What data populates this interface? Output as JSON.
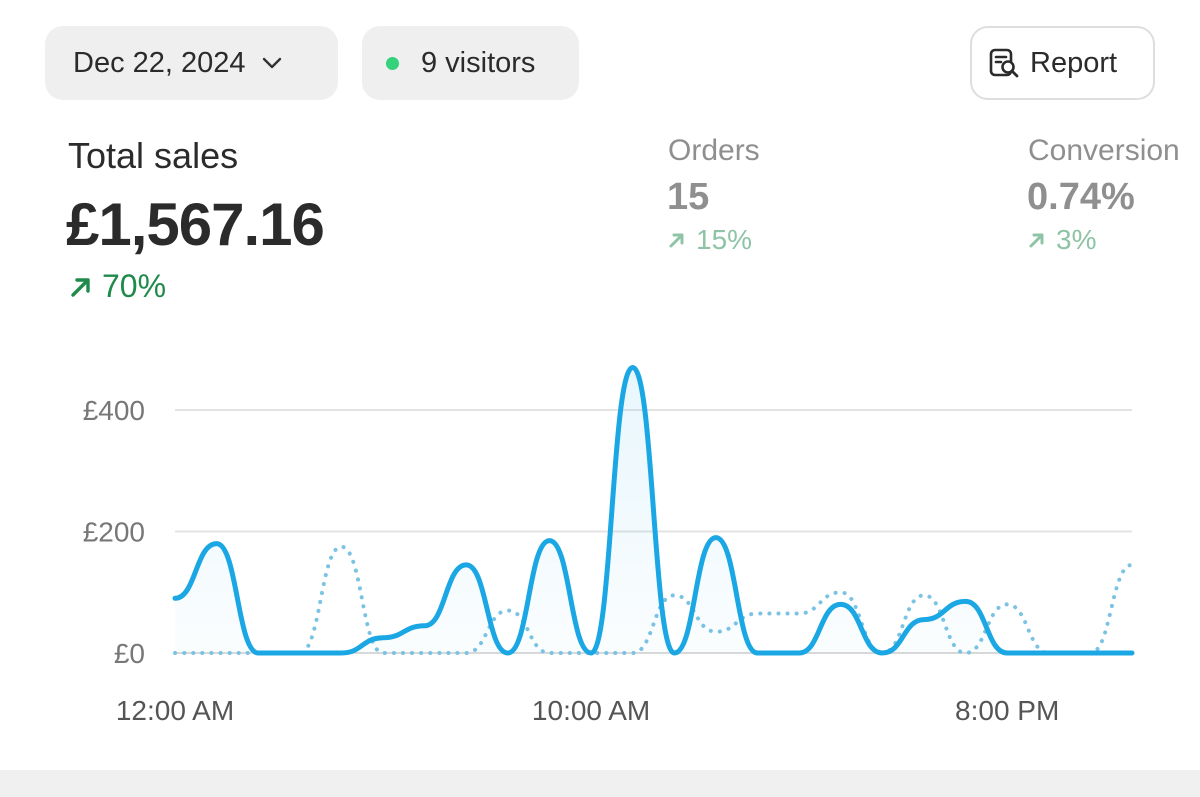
{
  "header": {
    "date": "Dec 22, 2024",
    "visitors": "9 visitors",
    "report_label": "Report",
    "visitor_dot_color": "#34d27b"
  },
  "total_sales": {
    "label": "Total sales",
    "value": "£1,567.16",
    "change": "70%",
    "change_color": "#1f8a4c"
  },
  "orders": {
    "label": "Orders",
    "value": "15",
    "change": "15%"
  },
  "conversion": {
    "label": "Conversion",
    "value": "0.74%",
    "change": "3%"
  },
  "chart_data": {
    "type": "line",
    "title": "",
    "xlabel": "",
    "ylabel": "",
    "ylim": [
      0,
      500
    ],
    "y_ticks": [
      {
        "label": "£0",
        "value": 0
      },
      {
        "label": "£200",
        "value": 200
      },
      {
        "label": "£400",
        "value": 400
      }
    ],
    "x_ticks": [
      {
        "label": "12:00 AM",
        "hour": 0
      },
      {
        "label": "10:00 AM",
        "hour": 10
      },
      {
        "label": "8:00 PM",
        "hour": 20
      }
    ],
    "grid": true,
    "series": [
      {
        "style": "solid",
        "color": "#1aa7e4",
        "hours": [
          0,
          1,
          2,
          3,
          4,
          5,
          6,
          7,
          8,
          9,
          10,
          11,
          12,
          13,
          14,
          15,
          16,
          17,
          18,
          19,
          20,
          21,
          22,
          23
        ],
        "values": [
          90,
          180,
          0,
          0,
          0,
          25,
          45,
          145,
          0,
          185,
          0,
          470,
          0,
          190,
          0,
          0,
          80,
          0,
          55,
          85,
          0,
          0,
          0,
          0
        ]
      },
      {
        "style": "dotted",
        "color": "#7cc3e3",
        "hours": [
          0,
          1,
          2,
          3,
          4,
          5,
          6,
          7,
          8,
          9,
          10,
          11,
          12,
          13,
          14,
          15,
          16,
          17,
          18,
          19,
          20,
          21,
          22,
          23
        ],
        "values": [
          0,
          0,
          0,
          0,
          175,
          0,
          0,
          0,
          70,
          0,
          0,
          0,
          95,
          35,
          65,
          65,
          100,
          0,
          95,
          0,
          80,
          0,
          0,
          145
        ]
      }
    ]
  }
}
